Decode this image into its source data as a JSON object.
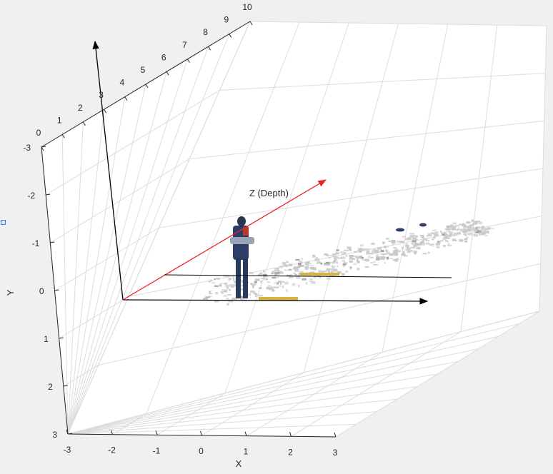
{
  "chart_data": {
    "type": "scatter",
    "dimensions": 3,
    "xlabel": "X",
    "ylabel": "Y",
    "zlabel": "",
    "x_ticks": [
      "-3",
      "-2",
      "-1",
      "0",
      "1",
      "2",
      "3"
    ],
    "y_ticks": [
      "-3",
      "-2",
      "-1",
      "0",
      "1",
      "2",
      "3"
    ],
    "z_ticks": [
      "0",
      "1",
      "2",
      "3",
      "4",
      "5",
      "6",
      "7",
      "8",
      "9",
      "10"
    ],
    "xlim": [
      -3,
      3
    ],
    "ylim": [
      -3,
      3
    ],
    "zlim": [
      0,
      10
    ],
    "y_reversed": true,
    "grid": true,
    "annotations": [
      {
        "text": "Z (Depth)",
        "arrow_color": "#e8262a"
      }
    ],
    "point_cloud_colors": [
      "#9a9a9a",
      "#c8c8c8",
      "#2d3e66",
      "#b23a2a",
      "#d7b342"
    ]
  },
  "colors": {
    "background": "#f0f0f0",
    "axes_face": "#ffffff",
    "grid": "#dcdcdc",
    "axis_line": "#262626",
    "depth_arrow": "#e8262a"
  }
}
